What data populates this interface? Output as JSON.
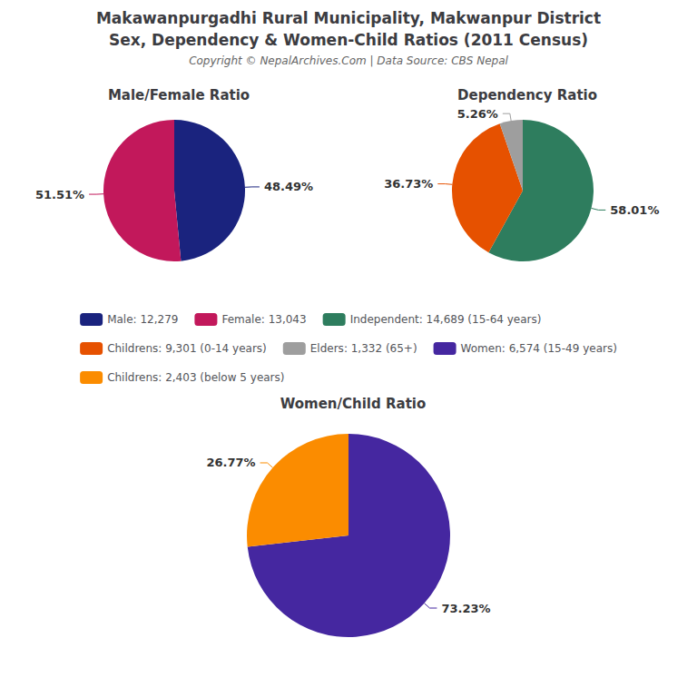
{
  "title": [
    "Makawanpurgadhi Rural Municipality, Makwanpur District",
    "Sex, Dependency & Women-Child Ratios (2011 Census)"
  ],
  "subtitle": "Copyright © NepalArchives.Com | Data Source: CBS Nepal",
  "legend": "center",
  "chart_data": [
    {
      "type": "pie",
      "title": "Male/Female Ratio",
      "categories": [
        "Male: 12,279",
        "Female: 13,043"
      ],
      "values": [
        48.49,
        51.51
      ],
      "value_labels": [
        "48.49%",
        "51.51%"
      ],
      "colors": [
        "#1A237E",
        "#C2185B"
      ],
      "data_labels": true
    },
    {
      "type": "pie",
      "title": "Dependency Ratio",
      "categories": [
        "Independent: 14,689 (15-64 years)",
        "Childrens: 9,301 (0-14 years)",
        "Elders: 1,332 (65+)"
      ],
      "values": [
        58.01,
        36.73,
        5.26
      ],
      "value_labels": [
        "58.01%",
        "36.73%",
        "5.26%"
      ],
      "colors": [
        "#2E7D5E",
        "#E65100",
        "#9E9E9E"
      ],
      "data_labels": true
    },
    {
      "type": "pie",
      "title": "Women/Child Ratio",
      "categories": [
        "Women: 6,574 (15-49 years)",
        "Childrens: 2,403 (below 5 years)"
      ],
      "values": [
        73.23,
        26.77
      ],
      "value_labels": [
        "73.23%",
        "26.77%"
      ],
      "colors": [
        "#4527A0",
        "#FB8C00"
      ],
      "data_labels": true
    }
  ]
}
